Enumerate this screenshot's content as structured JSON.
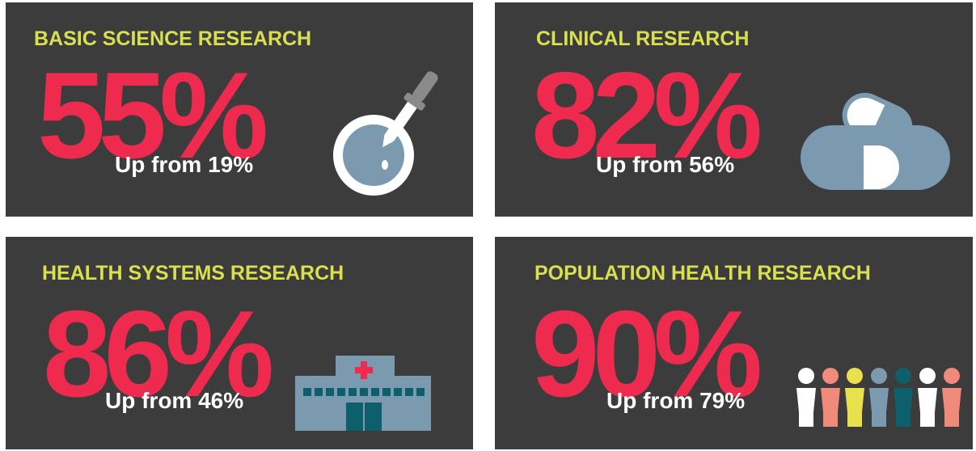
{
  "panels": [
    {
      "title": "BASIC SCIENCE RESEARCH",
      "value": "55%",
      "note": "Up from 19%"
    },
    {
      "title": "CLINICAL RESEARCH",
      "value": "82%",
      "note": "Up from 56%"
    },
    {
      "title": "HEALTH SYSTEMS RESEARCH",
      "value": "86%",
      "note": "Up from 46%"
    },
    {
      "title": "POPULATION HEALTH RESEARCH",
      "value": "90%",
      "note": "Up from 79%"
    }
  ]
}
